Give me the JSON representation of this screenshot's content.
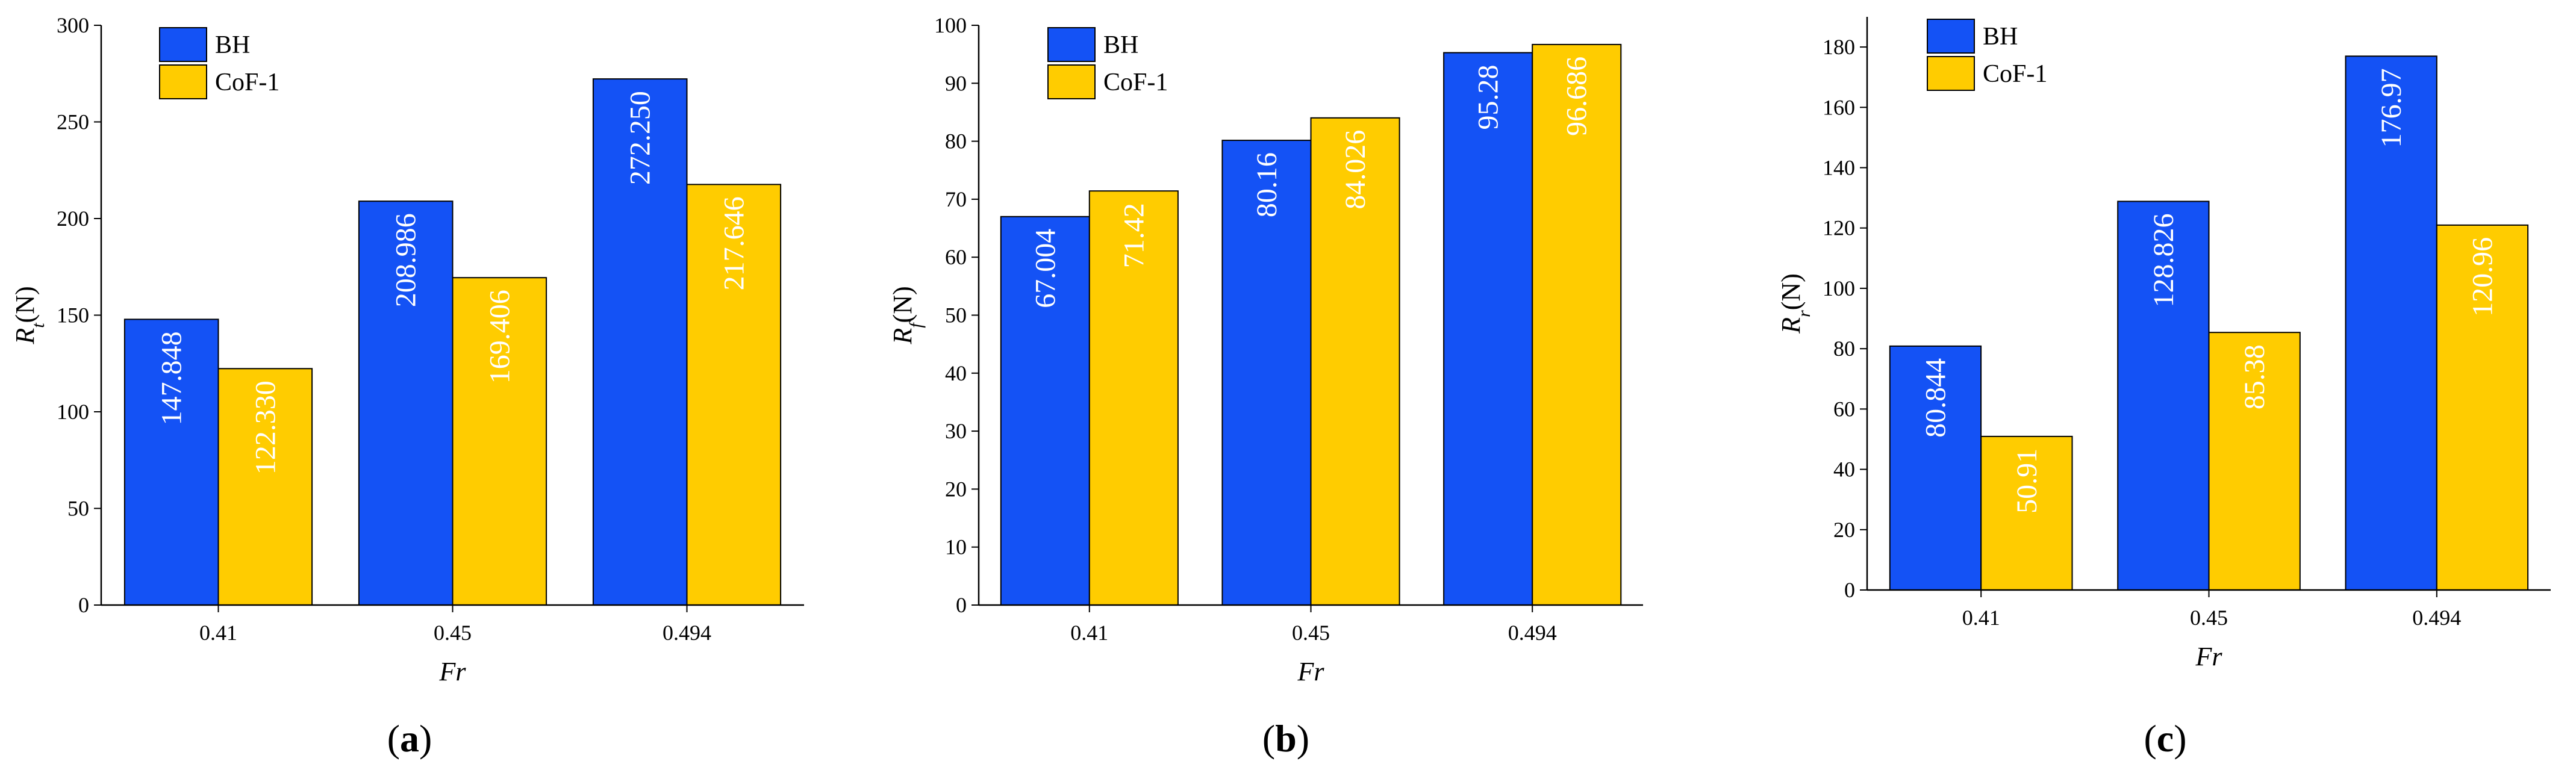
{
  "colors": {
    "series_1": "#1452F5",
    "series_2": "#FFCC00",
    "band": "#ffffff",
    "axis": "#000000",
    "label_text": "#ffffff"
  },
  "chart_data": [
    {
      "type": "bar",
      "panel_label": "a",
      "categories": [
        "0.41",
        "0.45",
        "0.494"
      ],
      "series": [
        {
          "name": "BH",
          "values": [
            147.848,
            208.986,
            272.25
          ],
          "labels": [
            "147.848",
            "208.986",
            "272.250"
          ]
        },
        {
          "name": "CoF-1",
          "values": [
            122.33,
            169.406,
            217.646
          ],
          "labels": [
            "122.330",
            "169.406",
            "217.646"
          ]
        }
      ],
      "title": "",
      "xlabel": "Fr",
      "ylabel": {
        "main": "R",
        "sub": "t",
        "unit": "(N)"
      },
      "ylim": [
        0,
        300
      ],
      "yticks": [
        0,
        50,
        100,
        150,
        200,
        250,
        300
      ],
      "legend": "top-left",
      "grid": false
    },
    {
      "type": "bar",
      "panel_label": "b",
      "categories": [
        "0.41",
        "0.45",
        "0.494"
      ],
      "series": [
        {
          "name": "BH",
          "values": [
            67.004,
            80.16,
            95.28
          ],
          "labels": [
            "67.004",
            "80.16",
            "95.28"
          ]
        },
        {
          "name": "CoF-1",
          "values": [
            71.42,
            84.026,
            96.686
          ],
          "labels": [
            "71.42",
            "84.026",
            "96.686"
          ]
        }
      ],
      "title": "",
      "xlabel": "Fr",
      "ylabel": {
        "main": "R",
        "sub": "f",
        "unit": "(N)"
      },
      "ylim": [
        0,
        100
      ],
      "yticks": [
        0,
        10,
        20,
        30,
        40,
        50,
        60,
        70,
        80,
        90,
        100
      ],
      "legend": "top-left",
      "grid": false
    },
    {
      "type": "bar",
      "panel_label": "c",
      "categories": [
        "0.41",
        "0.45",
        "0.494"
      ],
      "series": [
        {
          "name": "BH",
          "values": [
            80.844,
            128.826,
            176.97
          ],
          "labels": [
            "80.844",
            "128.826",
            "176.97"
          ]
        },
        {
          "name": "CoF-1",
          "values": [
            50.91,
            85.38,
            120.96
          ],
          "labels": [
            "50.91",
            "85.38",
            "120.96"
          ]
        }
      ],
      "title": "",
      "xlabel": "Fr",
      "ylabel": {
        "main": "R",
        "sub": "r",
        "unit": "(N)"
      },
      "ylim": [
        0,
        190
      ],
      "yticks": [
        0,
        20,
        40,
        60,
        80,
        100,
        120,
        140,
        160,
        180
      ],
      "legend": "top-left",
      "grid": false
    }
  ]
}
